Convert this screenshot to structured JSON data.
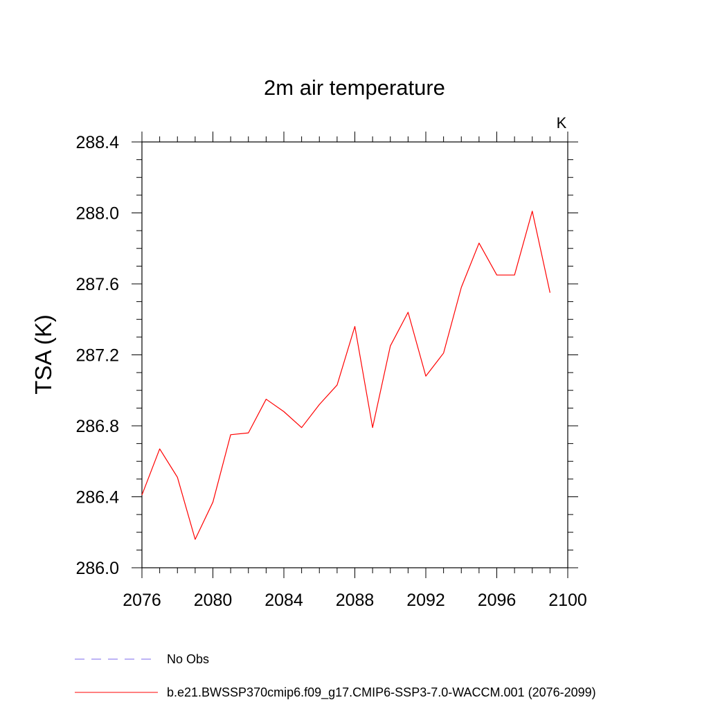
{
  "chart_data": {
    "type": "line",
    "title": "2m air temperature",
    "ylabel": "TSA  (K)",
    "units": "K",
    "xlim": [
      2076,
      2100
    ],
    "ylim": [
      286.0,
      288.4
    ],
    "x_ticks": [
      "2076",
      "2080",
      "2084",
      "2088",
      "2092",
      "2096",
      "2100"
    ],
    "y_ticks": [
      "286.0",
      "286.4",
      "286.8",
      "287.2",
      "287.6",
      "288.0",
      "288.4"
    ],
    "x_tick_values": [
      2076,
      2080,
      2084,
      2088,
      2092,
      2096,
      2100
    ],
    "y_tick_values": [
      286.0,
      286.4,
      286.8,
      287.2,
      287.6,
      288.0,
      288.4
    ],
    "grid": false,
    "legend_placement": "bottom-left, below plot",
    "series": [
      {
        "name": "b.e21.BWSSP370cmip6.f09_g17.CMIP6-SSP3-7.0-WACCM.001 (2076-2099)",
        "color": "#ff0000",
        "style": "solid",
        "x": [
          2076,
          2077,
          2078,
          2079,
          2080,
          2081,
          2082,
          2083,
          2084,
          2085,
          2086,
          2087,
          2088,
          2089,
          2090,
          2091,
          2092,
          2093,
          2094,
          2095,
          2096,
          2097,
          2098,
          2099
        ],
        "y": [
          286.41,
          286.67,
          286.51,
          286.16,
          286.37,
          286.75,
          286.76,
          286.95,
          286.88,
          286.79,
          286.92,
          287.03,
          287.36,
          286.79,
          287.25,
          287.44,
          287.08,
          287.21,
          287.58,
          287.83,
          287.65,
          287.65,
          288.01,
          287.55
        ]
      }
    ],
    "legend": [
      {
        "label": "No Obs",
        "color": "#7b68ee",
        "style": "dashed"
      },
      {
        "label": "b.e21.BWSSP370cmip6.f09_g17.CMIP6-SSP3-7.0-WACCM.001 (2076-2099)",
        "color": "#ff0000",
        "style": "solid"
      }
    ]
  }
}
